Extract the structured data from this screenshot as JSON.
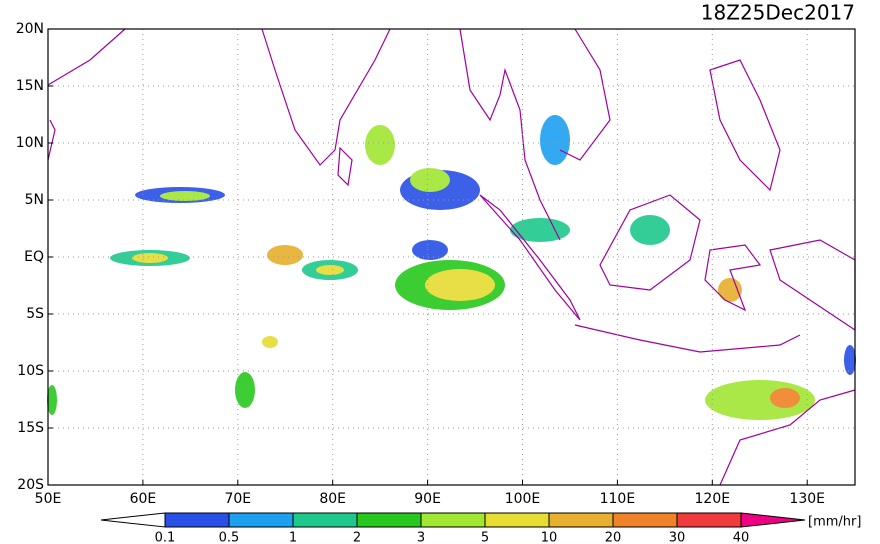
{
  "map": {
    "title": "18Z25Dec2017",
    "lon_ticks": [
      {
        "value": 50,
        "label": "50E"
      },
      {
        "value": 60,
        "label": "60E"
      },
      {
        "value": 70,
        "label": "70E"
      },
      {
        "value": 80,
        "label": "80E"
      },
      {
        "value": 90,
        "label": "90E"
      },
      {
        "value": 100,
        "label": "100E"
      },
      {
        "value": 110,
        "label": "110E"
      },
      {
        "value": 120,
        "label": "120E"
      },
      {
        "value": 130,
        "label": "130E"
      }
    ],
    "lat_ticks": [
      {
        "value": 20,
        "label": "20N"
      },
      {
        "value": 15,
        "label": "15N"
      },
      {
        "value": 10,
        "label": "10N"
      },
      {
        "value": 5,
        "label": "5N"
      },
      {
        "value": 0,
        "label": "EQ"
      },
      {
        "value": -5,
        "label": "5S"
      },
      {
        "value": -10,
        "label": "10S"
      },
      {
        "value": -15,
        "label": "15S"
      },
      {
        "value": -20,
        "label": "20S"
      }
    ],
    "colorbar": {
      "labels": [
        0.1,
        0.5,
        1,
        2,
        3,
        5,
        10,
        20,
        30,
        40
      ],
      "colors": [
        "#ffffff",
        "#2850e6",
        "#1ea0f0",
        "#1ec88c",
        "#28c81e",
        "#a0e632",
        "#e6dc32",
        "#e6af2d",
        "#f08228",
        "#f03c3c",
        "#f00082"
      ],
      "unit": "[mm/hr]"
    }
  }
}
